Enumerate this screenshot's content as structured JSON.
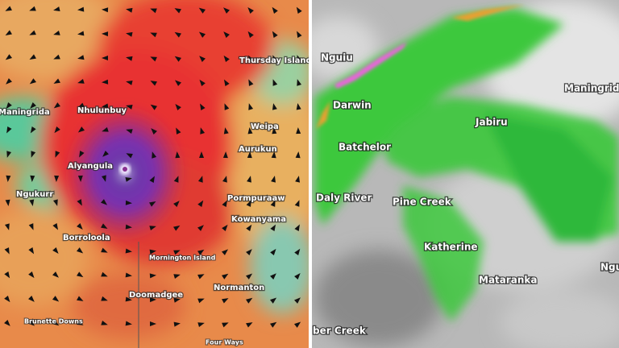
{
  "left_map": {
    "labels": [
      "Thursday Island",
      "Maningrida",
      "Nhulunbuy",
      "Weipa",
      "Aurukun",
      "Alyangula",
      "Ngukurr",
      "Pormpuraaw",
      "Kowanyama",
      "Borroloola",
      "Mornington Island",
      "Normanton",
      "Doomadgee",
      "Brunette Downs",
      "Four Ways"
    ]
  },
  "right_map": {
    "labels": [
      "Nguiu",
      "Darwin",
      "Jabiru",
      "Maningrida",
      "Batchelor",
      "Daly River",
      "Pine Creek",
      "Katherine",
      "Mataranka",
      "Ngu",
      "ber Creek"
    ]
  }
}
